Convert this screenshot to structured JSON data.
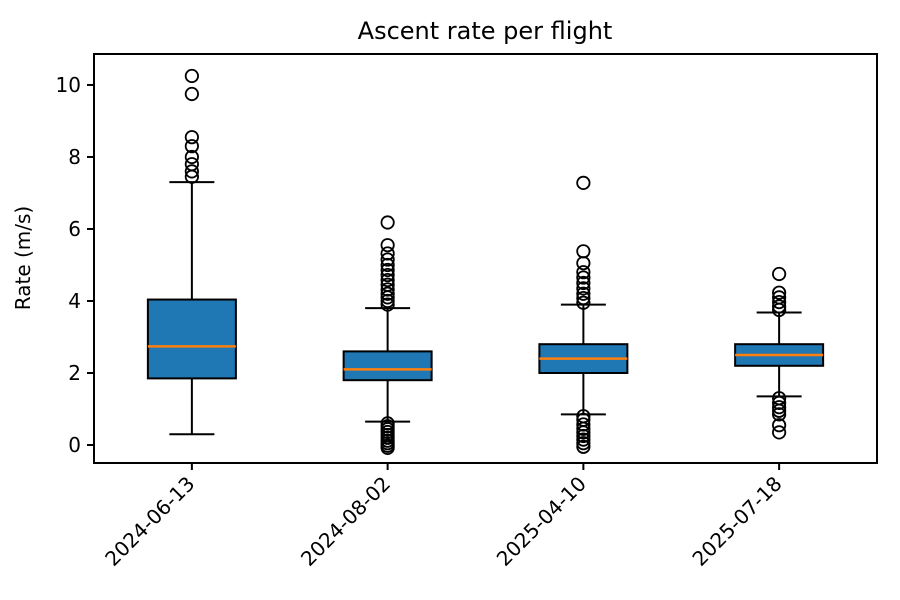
{
  "chart_data": {
    "type": "boxplot",
    "title": "Ascent rate per flight",
    "xlabel": "",
    "ylabel": "Rate (m/s)",
    "categories": [
      "2024-06-13",
      "2024-08-02",
      "2025-04-10",
      "2025-07-18"
    ],
    "yticks": [
      0,
      2,
      4,
      6,
      8,
      10
    ],
    "ylim": [
      -0.5,
      10.86
    ],
    "grid": false,
    "legend": false,
    "colors": {
      "box_fill": "#1f77b4",
      "median": "#ff7f0e",
      "edge": "#000000",
      "background": "#ffffff"
    },
    "series": [
      {
        "label": "2024-06-13",
        "whisker_low": 0.3,
        "q1": 1.85,
        "median": 2.74,
        "q3": 4.04,
        "whisker_high": 7.3,
        "outliers": [
          7.45,
          7.6,
          7.8,
          8.0,
          8.3,
          8.55,
          9.75,
          10.25
        ]
      },
      {
        "label": "2024-08-02",
        "whisker_low": 0.65,
        "q1": 1.8,
        "median": 2.1,
        "q3": 2.6,
        "whisker_high": 3.8,
        "outliers": [
          -0.08,
          -0.02,
          0.05,
          0.12,
          0.2,
          0.28,
          0.36,
          0.44,
          0.52,
          0.6,
          3.9,
          4.0,
          4.1,
          4.2,
          4.32,
          4.45,
          4.58,
          4.72,
          4.86,
          5.0,
          5.15,
          5.32,
          5.55,
          6.18
        ]
      },
      {
        "label": "2025-04-10",
        "whisker_low": 0.85,
        "q1": 2.0,
        "median": 2.4,
        "q3": 2.8,
        "whisker_high": 3.9,
        "outliers": [
          -0.05,
          0.05,
          0.15,
          0.25,
          0.35,
          0.45,
          0.57,
          0.7,
          0.8,
          3.95,
          4.08,
          4.2,
          4.35,
          4.5,
          4.65,
          4.8,
          5.05,
          5.38,
          7.28
        ]
      },
      {
        "label": "2025-07-18",
        "whisker_low": 1.35,
        "q1": 2.2,
        "median": 2.5,
        "q3": 2.8,
        "whisker_high": 3.68,
        "outliers": [
          0.35,
          0.55,
          0.85,
          0.95,
          1.05,
          1.17,
          1.3,
          3.75,
          3.85,
          3.97,
          4.1,
          4.23,
          4.75
        ]
      }
    ]
  }
}
